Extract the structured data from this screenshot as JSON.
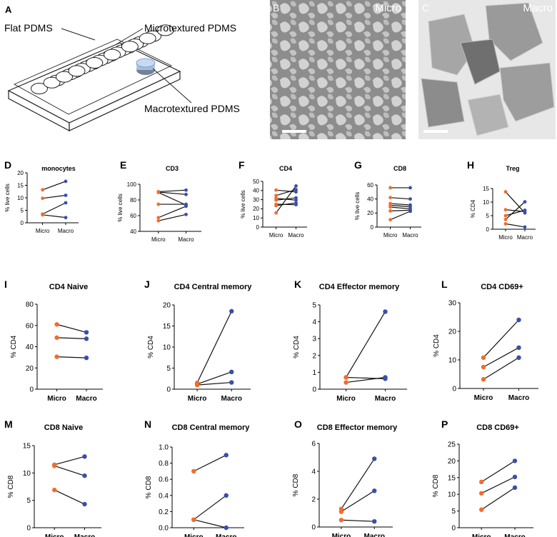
{
  "panel_letters": {
    "A": "A",
    "B": "B",
    "C": "C"
  },
  "panel_a": {
    "labels": [
      "Flat PDMS",
      "Microtextured PDMS",
      "Macrotextured PDMS"
    ]
  },
  "panel_b": {
    "label": "Micro"
  },
  "panel_c": {
    "label": "Macro"
  },
  "colors": {
    "micro": "#f26c2c",
    "macro": "#3b4eaa",
    "line": "#111111",
    "accent_blue": "#9bbde0"
  },
  "chart_data": [
    {
      "letter": "D",
      "type": "line",
      "title": "monocytes",
      "xlabel": "",
      "ylabel": "% live cells",
      "categories": [
        "Micro",
        "Macro"
      ],
      "ylim": [
        0,
        20
      ],
      "yticks": [
        0,
        5,
        10,
        15,
        20
      ],
      "series": [
        {
          "values": [
            13.2,
            16.6
          ]
        },
        {
          "values": [
            9.8,
            11.0
          ]
        },
        {
          "values": [
            3.5,
            8.0
          ]
        },
        {
          "values": [
            3.2,
            2.1
          ]
        }
      ]
    },
    {
      "letter": "E",
      "type": "line",
      "title": "CD3",
      "xlabel": "",
      "ylabel": "% live cells",
      "categories": [
        "Micro",
        "Macro"
      ],
      "ylim": [
        40,
        100
      ],
      "yticks": [
        40,
        60,
        80,
        100
      ],
      "series": [
        {
          "values": [
            90.5,
            92.5
          ]
        },
        {
          "values": [
            89.5,
            73.5
          ]
        },
        {
          "values": [
            74.5,
            74.5
          ]
        },
        {
          "values": [
            57.5,
            72.0
          ]
        },
        {
          "values": [
            53.5,
            61.5
          ]
        },
        {
          "values": [
            90.0,
            87.0
          ]
        }
      ]
    },
    {
      "letter": "F",
      "type": "line",
      "title": "CD4",
      "xlabel": "",
      "ylabel": "% live cells",
      "categories": [
        "Micro",
        "Macro"
      ],
      "ylim": [
        0,
        50
      ],
      "yticks": [
        0,
        10,
        20,
        30,
        40,
        50
      ],
      "series": [
        {
          "values": [
            40.5,
            38.5
          ]
        },
        {
          "values": [
            34.5,
            41.0
          ]
        },
        {
          "values": [
            31.5,
            29.5
          ]
        },
        {
          "values": [
            29.5,
            32.0
          ]
        },
        {
          "values": [
            25.0,
            24.5
          ]
        },
        {
          "values": [
            23.5,
            26.5
          ]
        },
        {
          "values": [
            15.5,
            45.0
          ]
        }
      ]
    },
    {
      "letter": "G",
      "type": "line",
      "title": "CD8",
      "xlabel": "",
      "ylabel": "% live cells",
      "categories": [
        "Micro",
        "Macro"
      ],
      "ylim": [
        0,
        60
      ],
      "yticks": [
        0,
        20,
        40,
        60
      ],
      "series": [
        {
          "values": [
            56.0,
            56.0
          ]
        },
        {
          "values": [
            42.0,
            40.0
          ]
        },
        {
          "values": [
            33.5,
            31.5
          ]
        },
        {
          "values": [
            31.0,
            29.0
          ]
        },
        {
          "values": [
            28.5,
            26.0
          ]
        },
        {
          "values": [
            23.0,
            24.0
          ]
        },
        {
          "values": [
            10.5,
            22.5
          ]
        }
      ]
    },
    {
      "letter": "H",
      "type": "line",
      "title": "Treg",
      "xlabel": "",
      "ylabel": "% CD4",
      "categories": [
        "Micro",
        "Macro"
      ],
      "ylim": [
        0,
        15
      ],
      "yticks": [
        0,
        5,
        10,
        15
      ],
      "series": [
        {
          "values": [
            13.8,
            6.0
          ]
        },
        {
          "values": [
            7.2,
            6.5
          ]
        },
        {
          "values": [
            5.0,
            7.0
          ]
        },
        {
          "values": [
            3.6,
            10.1
          ]
        },
        {
          "values": [
            2.0,
            0.8
          ]
        }
      ]
    },
    {
      "letter": "I",
      "type": "line",
      "title": "CD4 Naive",
      "xlabel": "",
      "ylabel": "% CD4",
      "categories": [
        "Micro",
        "Macro"
      ],
      "ylim": [
        0,
        80
      ],
      "yticks": [
        0,
        20,
        40,
        60,
        80
      ],
      "series": [
        {
          "values": [
            61.0,
            53.5
          ]
        },
        {
          "values": [
            48.5,
            47.5
          ]
        },
        {
          "values": [
            30.5,
            29.5
          ]
        }
      ]
    },
    {
      "letter": "J",
      "type": "line",
      "title": "CD4 Central memory",
      "xlabel": "",
      "ylabel": "% CD4",
      "categories": [
        "Micro",
        "Macro"
      ],
      "ylim": [
        0,
        20
      ],
      "yticks": [
        0,
        5,
        10,
        15,
        20
      ],
      "series": [
        {
          "values": [
            1.5,
            18.5
          ]
        },
        {
          "values": [
            1.2,
            4.1
          ]
        },
        {
          "values": [
            1.0,
            1.6
          ]
        }
      ]
    },
    {
      "letter": "K",
      "type": "line",
      "title": "CD4 Effector memory",
      "xlabel": "",
      "ylabel": "% CD4",
      "categories": [
        "Micro",
        "Macro"
      ],
      "ylim": [
        0,
        5
      ],
      "yticks": [
        0,
        1,
        2,
        3,
        4,
        5
      ],
      "series": [
        {
          "values": [
            0.7,
            4.6
          ]
        },
        {
          "values": [
            0.7,
            0.62
          ]
        },
        {
          "values": [
            0.4,
            0.7
          ]
        }
      ]
    },
    {
      "letter": "L",
      "type": "line",
      "title": "CD4 CD69+",
      "xlabel": "",
      "ylabel": "% CD4",
      "categories": [
        "Micro",
        "Macro"
      ],
      "ylim": [
        0,
        30
      ],
      "yticks": [
        0,
        10,
        20,
        30
      ],
      "series": [
        {
          "values": [
            10.8,
            24.0
          ]
        },
        {
          "values": [
            7.5,
            14.3
          ]
        },
        {
          "values": [
            3.2,
            10.8
          ]
        }
      ]
    },
    {
      "letter": "M",
      "type": "line",
      "title": "CD8 Naive",
      "xlabel": "",
      "ylabel": "% CD8",
      "categories": [
        "Micro",
        "Macro"
      ],
      "ylim": [
        0,
        15
      ],
      "yticks": [
        0,
        5,
        10,
        15
      ],
      "series": [
        {
          "values": [
            11.5,
            13.0
          ]
        },
        {
          "values": [
            11.3,
            9.5
          ]
        },
        {
          "values": [
            6.9,
            4.3
          ]
        }
      ]
    },
    {
      "letter": "N",
      "type": "line",
      "title": "CD8 Central memory",
      "xlabel": "",
      "ylabel": "% CD8",
      "categories": [
        "Micro",
        "Macro"
      ],
      "ylim": [
        0,
        1.0
      ],
      "yticks": [
        0.0,
        0.2,
        0.4,
        0.6,
        0.8,
        1.0
      ],
      "series": [
        {
          "values": [
            0.7,
            0.9
          ]
        },
        {
          "values": [
            0.1,
            0.4
          ]
        },
        {
          "values": [
            0.1,
            0.0
          ]
        }
      ]
    },
    {
      "letter": "O",
      "type": "line",
      "title": "CD8 Effector memory",
      "xlabel": "",
      "ylabel": "% CD8",
      "categories": [
        "Micro",
        "Macro"
      ],
      "ylim": [
        0,
        6
      ],
      "yticks": [
        0,
        2,
        4,
        6
      ],
      "series": [
        {
          "values": [
            1.3,
            4.9
          ]
        },
        {
          "values": [
            1.1,
            2.6
          ]
        },
        {
          "values": [
            0.5,
            0.4
          ]
        }
      ]
    },
    {
      "letter": "P",
      "type": "line",
      "title": "CD8 CD69+",
      "xlabel": "",
      "ylabel": "% CD8",
      "categories": [
        "Micro",
        "Macro"
      ],
      "ylim": [
        0,
        25
      ],
      "yticks": [
        0,
        5,
        10,
        15,
        20,
        25
      ],
      "series": [
        {
          "values": [
            13.7,
            20.0
          ]
        },
        {
          "values": [
            10.3,
            15.2
          ]
        },
        {
          "values": [
            5.4,
            12.0
          ]
        }
      ]
    }
  ]
}
